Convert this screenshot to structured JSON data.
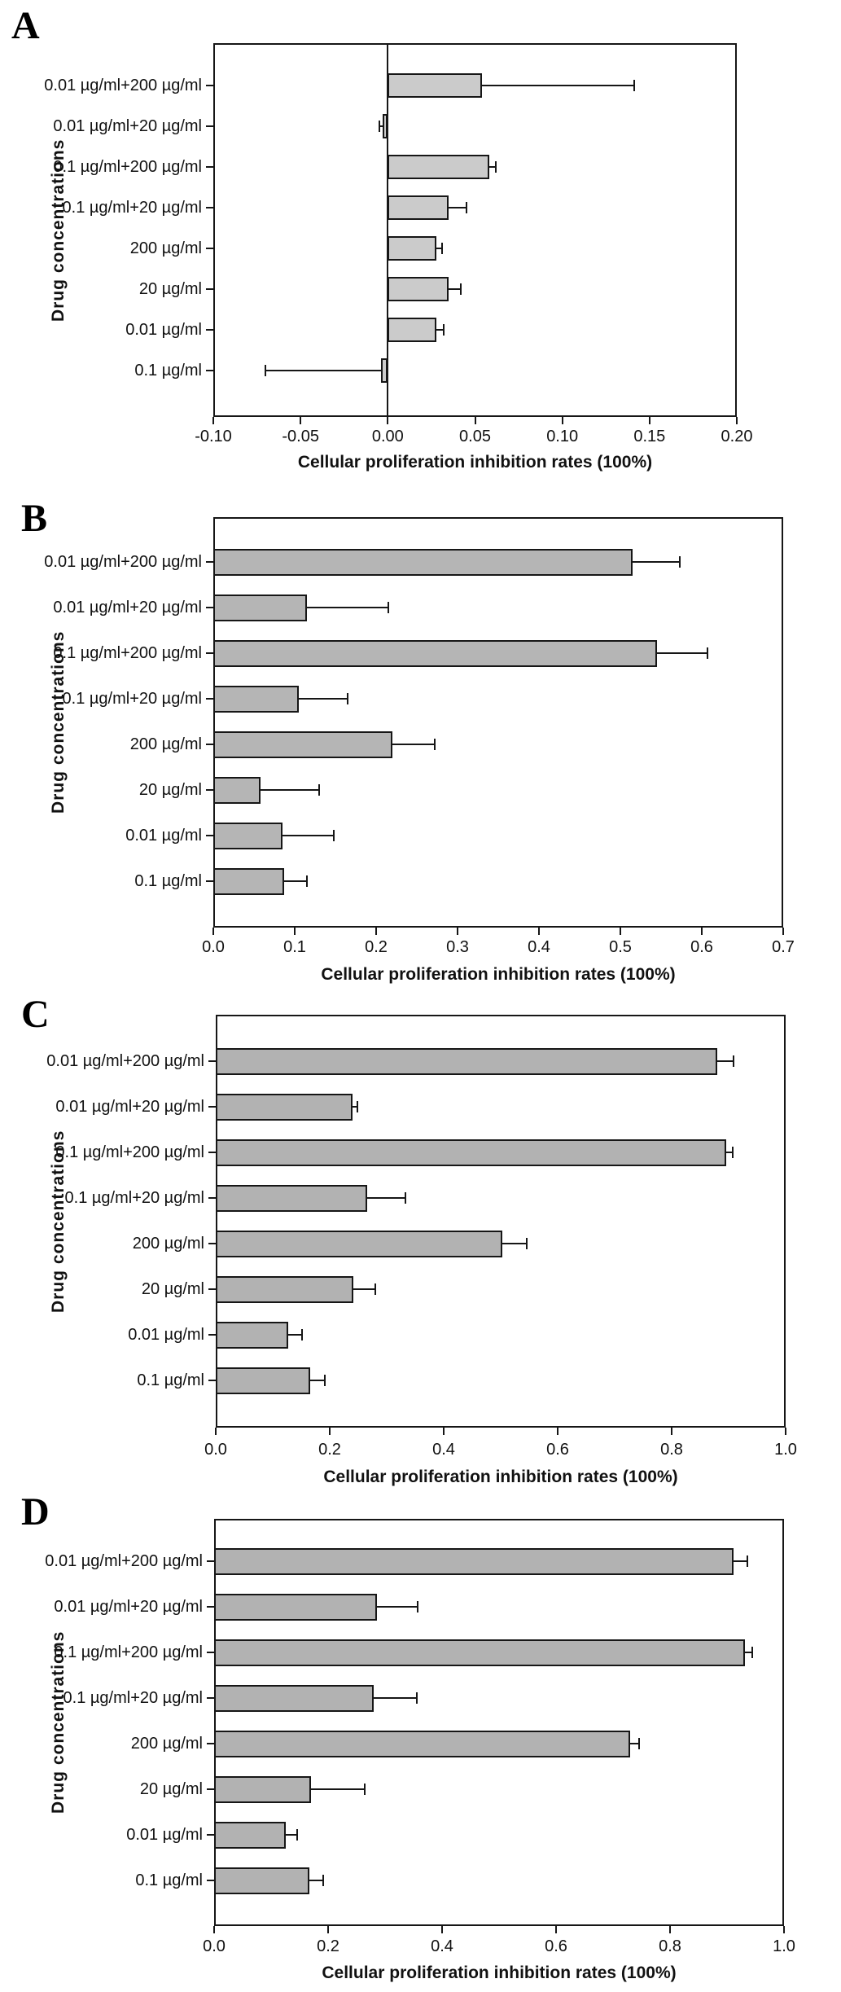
{
  "chart_data": [
    {
      "type": "bar",
      "orientation": "horizontal",
      "panel_letter": "A",
      "xlabel": "Cellular proliferation inhibition rates (100%)",
      "ylabel": "Drug concentrations",
      "categories": [
        "0.01 µg/ml+200 µg/ml",
        "0.01 µg/ml+20 µg/ml",
        "0.1 µg/ml+200 µg/ml",
        "0.1 µg/ml+20 µg/ml",
        "200 µg/ml",
        "20 µg/ml",
        "0.01 µg/ml",
        "0.1 µg/ml"
      ],
      "values": [
        0.054,
        -0.003,
        0.058,
        0.035,
        0.028,
        0.035,
        0.028,
        -0.004
      ],
      "errors": [
        0.087,
        0.002,
        0.004,
        0.01,
        0.003,
        0.007,
        0.004,
        0.066
      ],
      "xlim": [
        -0.1,
        0.2
      ],
      "xticks": [
        -0.1,
        -0.05,
        0.0,
        0.05,
        0.1,
        0.15,
        0.2
      ],
      "xtick_labels": [
        "-0.10",
        "-0.05",
        "0.00",
        "0.05",
        "0.10",
        "0.15",
        "0.20"
      ],
      "grid": "off",
      "bar_color": "#cbcbcb",
      "bar_border": "#161616"
    },
    {
      "type": "bar",
      "orientation": "horizontal",
      "panel_letter": "B",
      "xlabel": "Cellular proliferation inhibition rates (100%)",
      "ylabel": "Drug concentrations",
      "categories": [
        "0.01 µg/ml+200 µg/ml",
        "0.01 µg/ml+20 µg/ml",
        "0.1 µg/ml+200 µg/ml",
        "0.1 µg/ml+20 µg/ml",
        "200 µg/ml",
        "20 µg/ml",
        "0.01 µg/ml",
        "0.1 µg/ml"
      ],
      "values": [
        0.515,
        0.115,
        0.545,
        0.105,
        0.22,
        0.058,
        0.085,
        0.087
      ],
      "errors": [
        0.058,
        0.1,
        0.062,
        0.06,
        0.052,
        0.072,
        0.063,
        0.028
      ],
      "xlim": [
        0.0,
        0.7
      ],
      "xticks": [
        0.0,
        0.1,
        0.2,
        0.3,
        0.4,
        0.5,
        0.6,
        0.7
      ],
      "xtick_labels": [
        "0.0",
        "0.1",
        "0.2",
        "0.3",
        "0.4",
        "0.5",
        "0.6",
        "0.7"
      ],
      "grid": "off",
      "bar_color": "#b5b5b5",
      "bar_border": "#161616"
    },
    {
      "type": "bar",
      "orientation": "horizontal",
      "panel_letter": "C",
      "xlabel": "Cellular proliferation inhibition rates (100%)",
      "ylabel": "Drug concentrations",
      "categories": [
        "0.01 µg/ml+200 µg/ml",
        "0.01 µg/ml+20 µg/ml",
        "0.1 µg/ml+200 µg/ml",
        "0.1 µg/ml+20 µg/ml",
        "200 µg/ml",
        "20 µg/ml",
        "0.01 µg/ml",
        "0.1 µg/ml"
      ],
      "values": [
        0.88,
        0.24,
        0.895,
        0.265,
        0.503,
        0.242,
        0.127,
        0.165
      ],
      "errors": [
        0.028,
        0.008,
        0.012,
        0.068,
        0.042,
        0.038,
        0.024,
        0.026
      ],
      "xlim": [
        0.0,
        1.0
      ],
      "xticks": [
        0.0,
        0.2,
        0.4,
        0.6,
        0.8,
        1.0
      ],
      "xtick_labels": [
        "0.0",
        "0.2",
        "0.4",
        "0.6",
        "0.8",
        "1.0"
      ],
      "grid": "off",
      "bar_color": "#b2b2b2",
      "bar_border": "#161616"
    },
    {
      "type": "bar",
      "orientation": "horizontal",
      "panel_letter": "D",
      "xlabel": "Cellular proliferation inhibition rates (100%)",
      "ylabel": "Drug concentrations",
      "categories": [
        "0.01 µg/ml+200 µg/ml",
        "0.01 µg/ml+20 µg/ml",
        "0.1 µg/ml+200 µg/ml",
        "0.1 µg/ml+20 µg/ml",
        "200 µg/ml",
        "20 µg/ml",
        "0.01 µg/ml",
        "0.1 µg/ml"
      ],
      "values": [
        0.912,
        0.285,
        0.932,
        0.28,
        0.73,
        0.17,
        0.126,
        0.167
      ],
      "errors": [
        0.023,
        0.072,
        0.012,
        0.075,
        0.016,
        0.094,
        0.02,
        0.024
      ],
      "xlim": [
        0.0,
        1.0
      ],
      "xticks": [
        0.0,
        0.2,
        0.4,
        0.6,
        0.8,
        1.0
      ],
      "xtick_labels": [
        "0.0",
        "0.2",
        "0.4",
        "0.6",
        "0.8",
        "1.0"
      ],
      "grid": "off",
      "bar_color": "#b2b2b2",
      "bar_border": "#161616"
    }
  ]
}
